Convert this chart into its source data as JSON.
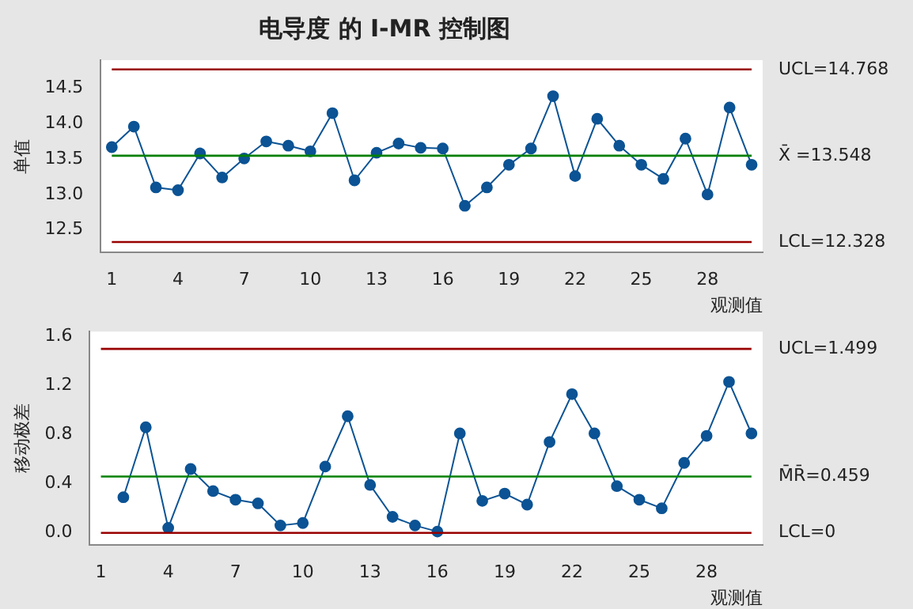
{
  "chart_data": [
    {
      "type": "line",
      "title": "电导度 的 I-MR 控制图",
      "xlabel": "观测值",
      "ylabel": "单值",
      "categories": [
        "1",
        null,
        null,
        "4",
        null,
        null,
        "7",
        null,
        null,
        "10",
        null,
        null,
        "13",
        null,
        null,
        "16",
        null,
        null,
        "19",
        null,
        null,
        "22",
        null,
        null,
        "25",
        null,
        null,
        "28",
        null,
        null
      ],
      "series": [
        {
          "color": "#0b5394",
          "values": [
            13.67,
            13.96,
            13.1,
            13.06,
            13.58,
            13.24,
            13.51,
            13.75,
            13.69,
            13.61,
            14.15,
            13.2,
            13.59,
            13.72,
            13.66,
            13.65,
            12.84,
            13.1,
            13.42,
            13.65,
            14.39,
            13.26,
            14.07,
            13.69,
            13.42,
            13.22,
            13.79,
            13.0,
            14.23,
            13.42
          ]
        }
      ],
      "ylim": [
        12.18,
        14.9
      ],
      "yticks": [
        12.5,
        {
          "value": 13,
          "label": "13.0"
        },
        13.5,
        {
          "value": 14,
          "label": "14.0"
        },
        14.5
      ],
      "ref_lines": [
        {
          "axis": "y",
          "value": 14.768,
          "label": "UCL=14.768",
          "color": "#990000"
        },
        {
          "axis": "y",
          "value": 13.548,
          "label": "X̄ =13.548",
          "color": "#008000"
        },
        {
          "axis": "y",
          "value": 12.328,
          "label": "LCL=12.328",
          "color": "#990000"
        }
      ],
      "marker": "circle",
      "grid": false,
      "legend": false
    },
    {
      "type": "line",
      "xlabel": "观测值",
      "ylabel": "移动极差",
      "categories": [
        "1",
        null,
        null,
        "4",
        null,
        null,
        "7",
        null,
        null,
        "10",
        null,
        null,
        "13",
        null,
        null,
        "16",
        null,
        null,
        "19",
        null,
        null,
        "22",
        null,
        null,
        "25",
        null,
        null,
        "28",
        null,
        null
      ],
      "series": [
        {
          "color": "#0b5394",
          "values": [
            null,
            0.29,
            0.86,
            0.04,
            0.52,
            0.34,
            0.27,
            0.24,
            0.06,
            0.08,
            0.54,
            0.95,
            0.39,
            0.13,
            0.06,
            0.01,
            0.81,
            0.26,
            0.32,
            0.23,
            0.74,
            1.13,
            0.81,
            0.38,
            0.27,
            0.2,
            0.57,
            0.79,
            1.23,
            0.81
          ]
        }
      ],
      "ylim": [
        -0.1,
        1.64
      ],
      "yticks": [
        {
          "value": 0,
          "label": "0.0"
        },
        0.4,
        0.8,
        1.2,
        1.6
      ],
      "ref_lines": [
        {
          "axis": "y",
          "value": 1.499,
          "label": "UCL=1.499",
          "color": "#990000"
        },
        {
          "axis": "y",
          "value": 0.459,
          "label": "M̄R̄=0.459",
          "color": "#008000"
        },
        {
          "axis": "y",
          "value": 0,
          "label": "LCL=0",
          "color": "#990000"
        }
      ],
      "marker": "circle",
      "grid": false,
      "legend": false
    }
  ]
}
